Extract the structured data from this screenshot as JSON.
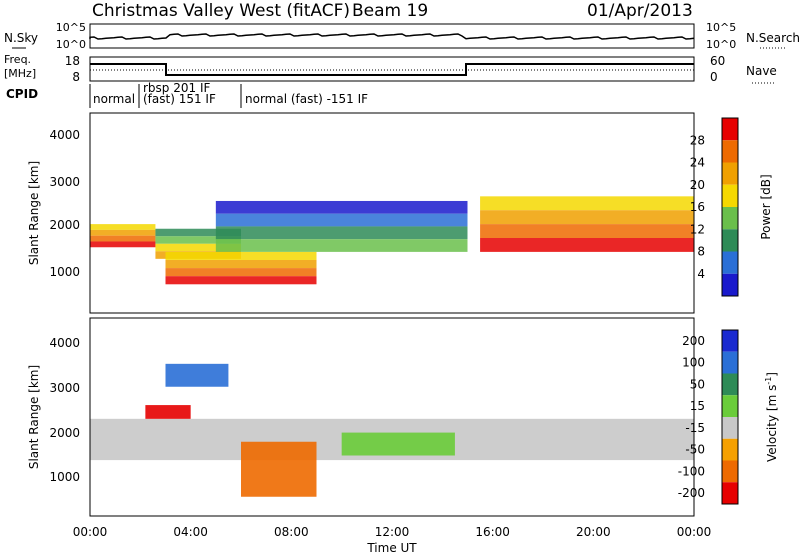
{
  "header": {
    "title": "Christmas Valley West (fitACF)",
    "beam": "Beam 19",
    "date": "01/Apr/2013"
  },
  "noise_panel": {
    "left_label": "N.Sky",
    "right_label": "N.Search",
    "left_ticks": [
      "10^5",
      "10^0"
    ],
    "right_ticks": [
      "10^5",
      "10^0"
    ]
  },
  "freq_panel": {
    "left_label_line1": "Freq.",
    "left_label_line2": "[MHz]",
    "right_label": "Nave",
    "left_ticks": [
      "18",
      "8"
    ],
    "right_ticks": [
      "60",
      "0"
    ]
  },
  "cpid_panel": {
    "label": "CPID",
    "segments": [
      {
        "text": "normal",
        "start_hour": 0,
        "end_hour": 1.9
      },
      {
        "text": "rbsp 201 IF\n(fast) 151 IF",
        "start_hour": 1.9,
        "end_hour": 6.0
      },
      {
        "text": "normal (fast) -151 IF",
        "start_hour": 6.0,
        "end_hour": 24
      }
    ]
  },
  "power_panel": {
    "ylabel": "Slant Range [km]",
    "yticks": [
      "1000",
      "2000",
      "3000",
      "4000"
    ],
    "colorbar_label": "Power [dB]",
    "colorbar_ticks": [
      "28",
      "24",
      "20",
      "16",
      "12",
      "8",
      "4"
    ],
    "colors": [
      "#1a1acc",
      "#2a6fd6",
      "#2e8b57",
      "#6abf4b",
      "#f5d800",
      "#f0a000",
      "#ee6a00",
      "#e60000"
    ]
  },
  "velocity_panel": {
    "ylabel": "Slant Range [km]",
    "yticks": [
      "1000",
      "2000",
      "3000",
      "4000"
    ],
    "colorbar_label": "Velocity [m s-1]",
    "colorbar_ticks": [
      "200",
      "100",
      "50",
      "15",
      "-15",
      "-50",
      "-100",
      "-200"
    ],
    "colors": [
      "#1a2ad0",
      "#2a6fd6",
      "#2e8b57",
      "#6acc3a",
      "#c8c8c8",
      "#f5a000",
      "#ee6a00",
      "#e60000"
    ]
  },
  "time_axis": {
    "label": "Time UT",
    "ticks": [
      "00:00",
      "04:00",
      "08:00",
      "12:00",
      "16:00",
      "20:00",
      "00:00"
    ]
  },
  "chart_data": {
    "type": "heatmap",
    "title": "Christmas Valley West (fitACF)",
    "xlabel": "Time UT",
    "ylabel": "Slant Range [km]",
    "xlim": [
      0,
      24
    ],
    "ylim": [
      180,
      4500
    ],
    "power_bands": [
      {
        "t0": 0.0,
        "t1": 2.6,
        "r0": 1600,
        "r1": 2100,
        "level": "high"
      },
      {
        "t0": 2.6,
        "t1": 6.0,
        "r0": 1350,
        "r1": 2000,
        "level": "medium"
      },
      {
        "t0": 3.0,
        "t1": 9.0,
        "r0": 800,
        "r1": 1500,
        "level": "high"
      },
      {
        "t0": 5.0,
        "t1": 15.0,
        "r0": 1500,
        "r1": 2600,
        "level": "low"
      },
      {
        "t0": 15.5,
        "t1": 24.0,
        "r0": 1500,
        "r1": 2700,
        "level": "high"
      }
    ],
    "velocity_bands": [
      {
        "t0": 0.0,
        "t1": 24.0,
        "r0": 1400,
        "r1": 2300,
        "value": 0
      },
      {
        "t0": 2.2,
        "t1": 4.0,
        "r0": 2300,
        "r1": 2600,
        "value": -150
      },
      {
        "t0": 3.0,
        "t1": 5.5,
        "r0": 3000,
        "r1": 3500,
        "value": 150
      },
      {
        "t0": 6.0,
        "t1": 9.0,
        "r0": 600,
        "r1": 1800,
        "value": -60
      },
      {
        "t0": 10.0,
        "t1": 14.5,
        "r0": 1500,
        "r1": 2000,
        "value": 30
      }
    ]
  }
}
